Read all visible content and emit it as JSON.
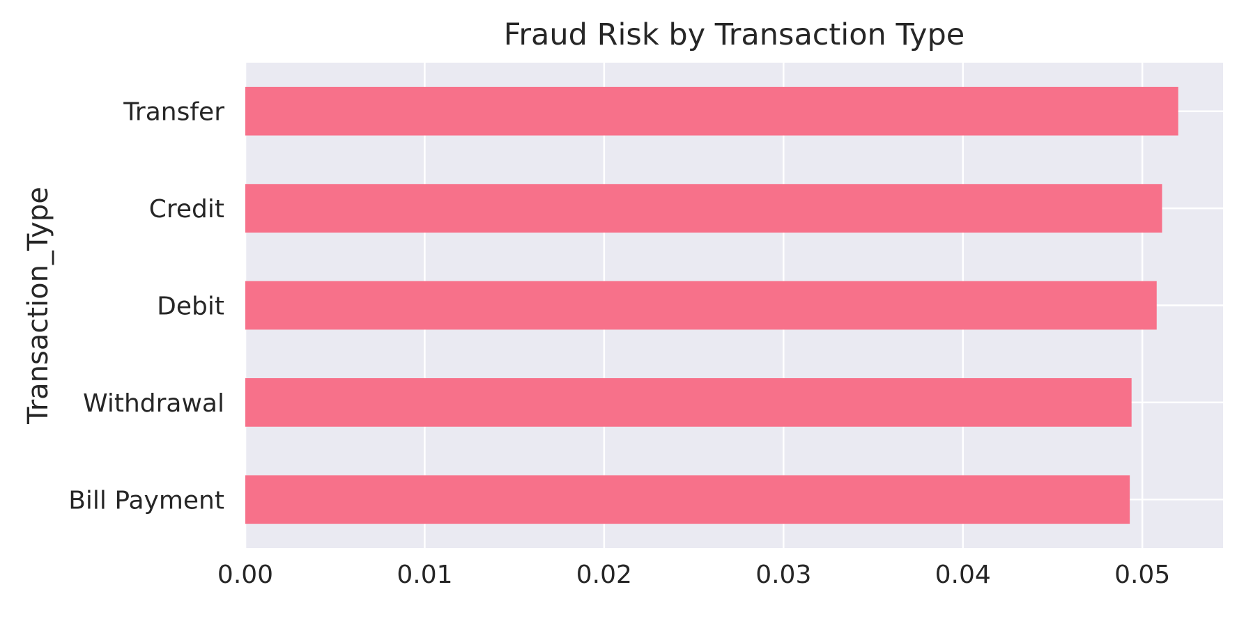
{
  "chart_data": {
    "type": "bar",
    "orientation": "horizontal",
    "title": "Fraud Risk by Transaction Type",
    "xlabel": "",
    "ylabel": "Transaction_Type",
    "categories": [
      "Transfer",
      "Credit",
      "Debit",
      "Withdrawal",
      "Bill Payment"
    ],
    "values": [
      0.052,
      0.0511,
      0.0508,
      0.0494,
      0.0493
    ],
    "xlim": [
      0,
      0.0545
    ],
    "xticks": [
      0.0,
      0.01,
      0.02,
      0.03,
      0.04,
      0.05
    ],
    "xtick_labels": [
      "0.00",
      "0.01",
      "0.02",
      "0.03",
      "0.04",
      "0.05"
    ],
    "grid": true,
    "colors": {
      "bar": "#f7718a",
      "plot_background": "#eaeaf2",
      "grid": "#ffffff"
    }
  }
}
